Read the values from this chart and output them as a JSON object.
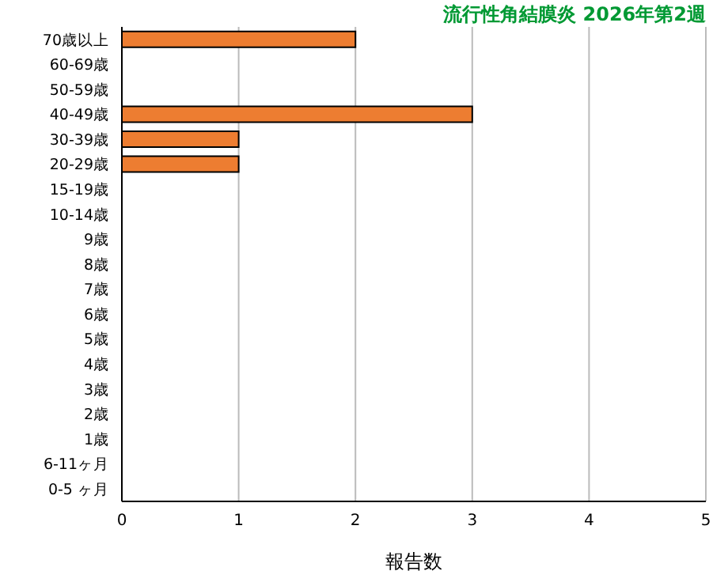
{
  "chart_data": {
    "type": "bar",
    "orientation": "horizontal",
    "title": "流行性角結膜炎 2026年第2週",
    "xlabel": "報告数",
    "categories": [
      "70歳以上",
      "60-69歳",
      "50-59歳",
      "40-49歳",
      "30-39歳",
      "20-29歳",
      "15-19歳",
      "10-14歳",
      "9歳",
      "8歳",
      "7歳",
      "6歳",
      "5歳",
      "4歳",
      "3歳",
      "2歳",
      "1歳",
      "6-11ヶ月",
      "0-5 ヶ月"
    ],
    "values": [
      2,
      0,
      0,
      3,
      1,
      1,
      0,
      0,
      0,
      0,
      0,
      0,
      0,
      0,
      0,
      0,
      0,
      0,
      0
    ],
    "color": "#ed7d31",
    "xlim": [
      0,
      5
    ],
    "xticks": [
      0,
      1,
      2,
      3,
      4,
      5
    ],
    "grid": "x"
  }
}
